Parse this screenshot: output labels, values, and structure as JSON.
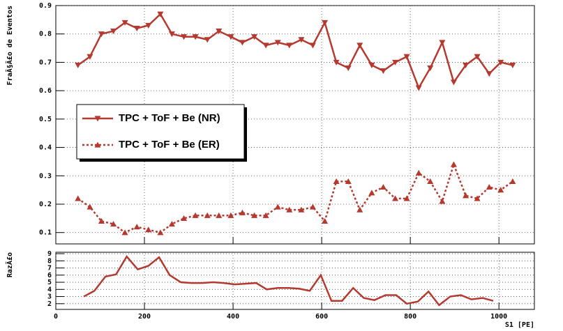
{
  "chart_data": [
    {
      "type": "line",
      "ylabel": "FraÃ§Ã£o de Eventos",
      "x": [
        50,
        77,
        103,
        130,
        156,
        183,
        209,
        236,
        262,
        289,
        315,
        342,
        368,
        395,
        421,
        448,
        474,
        501,
        527,
        554,
        580,
        607,
        633,
        660,
        686,
        713,
        739,
        766,
        792,
        819,
        845,
        872,
        898,
        925,
        951,
        978,
        1004,
        1031
      ],
      "series": [
        {
          "name": "TPC + ToF + Be (NR)",
          "color": "#b5392f",
          "marker": "triangle-down",
          "dash": "solid",
          "values": [
            0.69,
            0.72,
            0.8,
            0.81,
            0.84,
            0.82,
            0.83,
            0.87,
            0.8,
            0.79,
            0.79,
            0.78,
            0.81,
            0.79,
            0.77,
            0.79,
            0.76,
            0.77,
            0.76,
            0.78,
            0.76,
            0.84,
            0.7,
            0.68,
            0.76,
            0.69,
            0.67,
            0.7,
            0.72,
            0.61,
            0.68,
            0.77,
            0.63,
            0.69,
            0.72,
            0.66,
            0.7,
            0.69
          ]
        },
        {
          "name": "TPC + ToF + Be (ER)",
          "color": "#b5392f",
          "marker": "triangle-up",
          "dash": "dotted",
          "values": [
            0.22,
            0.19,
            0.14,
            0.13,
            0.1,
            0.12,
            0.11,
            0.1,
            0.13,
            0.15,
            0.16,
            0.16,
            0.16,
            0.16,
            0.17,
            0.16,
            0.16,
            0.19,
            0.18,
            0.18,
            0.19,
            0.14,
            0.28,
            0.28,
            0.18,
            0.24,
            0.26,
            0.22,
            0.22,
            0.31,
            0.28,
            0.21,
            0.34,
            0.23,
            0.22,
            0.26,
            0.25,
            0.28
          ]
        }
      ],
      "xlim": [
        0,
        1080
      ],
      "xticks": [
        200,
        400,
        600,
        800,
        1000
      ],
      "xtick_labels": false,
      "ylim": [
        0.06,
        0.9
      ],
      "yticks": [
        0.1,
        0.2,
        0.3,
        0.4,
        0.5,
        0.6,
        0.7,
        0.8,
        0.9
      ],
      "grid": true,
      "legend": "upper-left"
    },
    {
      "type": "line",
      "ylabel": "RazÃ£o",
      "xlabel": "S1 [PE]",
      "x": [
        63,
        87,
        112,
        136,
        160,
        185,
        209,
        233,
        257,
        282,
        306,
        330,
        355,
        379,
        403,
        428,
        452,
        476,
        501,
        525,
        549,
        573,
        598,
        622,
        646,
        671,
        695,
        719,
        744,
        768,
        792,
        817,
        841,
        865,
        890,
        914,
        938,
        963,
        987
      ],
      "series": [
        {
          "color": "#b5392f",
          "dash": "solid",
          "values": [
            3.0,
            3.8,
            5.8,
            6.1,
            8.6,
            6.8,
            7.3,
            8.5,
            6.0,
            5.0,
            4.9,
            4.9,
            5.0,
            4.9,
            4.7,
            4.8,
            4.9,
            4.0,
            4.2,
            4.2,
            4.1,
            3.8,
            6.0,
            2.4,
            2.4,
            4.2,
            2.8,
            2.5,
            3.2,
            3.2,
            2.0,
            2.3,
            3.7,
            1.8,
            3.0,
            3.2,
            2.6,
            2.8,
            2.4
          ]
        }
      ],
      "xlim": [
        0,
        1080
      ],
      "xticks": [
        0,
        200,
        400,
        600,
        800,
        1000
      ],
      "xtick_labels": true,
      "ylim": [
        1.2,
        9.2
      ],
      "yticks": [
        2,
        3,
        4,
        5,
        6,
        7,
        8,
        9
      ],
      "grid": true
    }
  ]
}
